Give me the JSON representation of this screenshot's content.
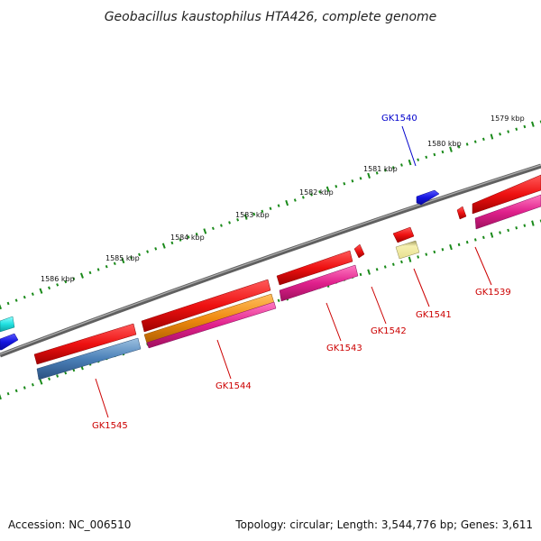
{
  "title": "Geobacillus kaustophilus HTA426, complete genome",
  "footer": {
    "accession": "Accession: NC_006510",
    "summary": "Topology: circular; Length: 3,544,776 bp; Genes: 3,611"
  },
  "scale_labels": [
    "1586 kbp",
    "1585 kbp",
    "1584 kbp",
    "1583 kbp",
    "1582 kbp",
    "1581 kbp",
    "1580 kbp",
    "1579 kbp"
  ],
  "gene_labels": {
    "GK1540": "GK1540",
    "GK1539": "GK1539",
    "GK1541": "GK1541",
    "GK1542": "GK1542",
    "GK1543": "GK1543",
    "GK1544": "GK1544",
    "GK1545": "GK1545"
  },
  "colors": {
    "backbone": "#808080",
    "tick": "#1a8a1a",
    "gene_red": "#ee1111",
    "gene_magenta": "#e0208c",
    "gene_blue": "#1515e0",
    "gene_steelblue": "#4a80b8",
    "gene_orange": "#f08a10",
    "gene_khaki": "#eee8a0",
    "gene_cyan": "#20e0e0",
    "label_red": "#cc0000",
    "label_blue": "#0000cc"
  }
}
